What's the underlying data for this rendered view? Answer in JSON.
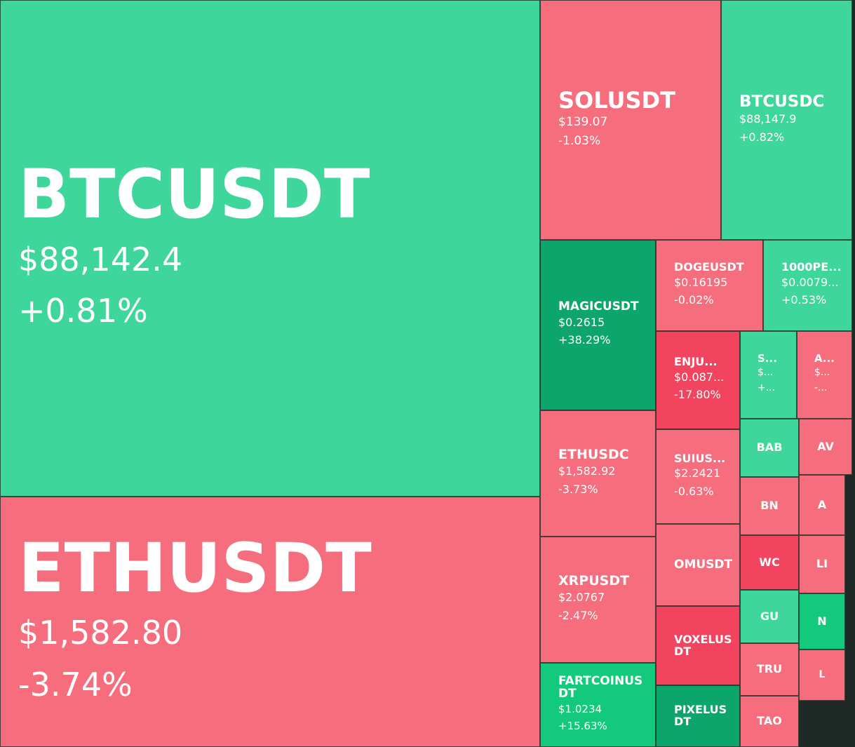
{
  "tiles": [
    {
      "symbol": "BTCUSDT",
      "price": "$88,142.4",
      "change": "+0.81%"
    },
    {
      "symbol": "ETHUSDT",
      "price": "$1,582.80",
      "change": "-3.74%"
    },
    {
      "symbol": "SOLUSDT",
      "price": "$139.07",
      "change": "-1.03%"
    },
    {
      "symbol": "BTCUSDC",
      "price": "$88,147.9",
      "change": "+0.82%"
    },
    {
      "symbol": "MAGICUSDT",
      "price": "$0.2615",
      "change": "+38.29%"
    },
    {
      "symbol": "DOGEUSDT",
      "price": "$0.16195",
      "change": "-0.02%"
    },
    {
      "symbol": "1000PE...",
      "price": "$0.0079...",
      "change": "+0.53%"
    },
    {
      "symbol": "ENJU...",
      "price": "$0.087...",
      "change": "-17.80%"
    },
    {
      "symbol": "S...",
      "price": "$...",
      "change": "+..."
    },
    {
      "symbol": "A...",
      "price": "$...",
      "change": "-..."
    },
    {
      "symbol": "ETHUSDC",
      "price": "$1,582.92",
      "change": "-3.73%"
    },
    {
      "symbol": "SUIUS...",
      "price": "$2.2421",
      "change": "-0.63%"
    },
    {
      "symbol": "BAB"
    },
    {
      "symbol": "AV"
    },
    {
      "symbol": "BN"
    },
    {
      "symbol": "A"
    },
    {
      "symbol": "XRPUSDT",
      "price": "$2.0767",
      "change": "-2.47%"
    },
    {
      "symbol": "OMUSDT"
    },
    {
      "symbol": "WC"
    },
    {
      "symbol": "LI"
    },
    {
      "symbol": "VOXELUSDT"
    },
    {
      "symbol": "GU"
    },
    {
      "symbol": "N"
    },
    {
      "symbol": "TRU"
    },
    {
      "symbol": "L"
    },
    {
      "symbol": "FARTCOINUSDT",
      "price": "$1.0234",
      "change": "+15.63%"
    },
    {
      "symbol": "PIXELUSDT"
    },
    {
      "symbol": "TAO"
    }
  ]
}
